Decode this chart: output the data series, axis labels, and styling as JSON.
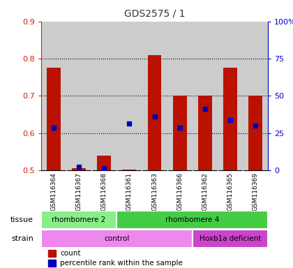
{
  "title": "GDS2575 / 1",
  "samples": [
    "GSM116364",
    "GSM116367",
    "GSM116368",
    "GSM116361",
    "GSM116363",
    "GSM116366",
    "GSM116362",
    "GSM116365",
    "GSM116369"
  ],
  "counts": [
    0.775,
    0.505,
    0.54,
    0.501,
    0.81,
    0.7,
    0.7,
    0.775,
    0.7
  ],
  "percentiles": [
    0.615,
    0.51,
    0.505,
    0.625,
    0.645,
    0.615,
    0.665,
    0.635,
    0.62
  ],
  "ylim_left": [
    0.5,
    0.9
  ],
  "ylim_right": [
    0,
    100
  ],
  "yticks_left": [
    0.5,
    0.6,
    0.7,
    0.8,
    0.9
  ],
  "yticks_right": [
    0,
    25,
    50,
    75,
    100
  ],
  "bar_color": "#bb1100",
  "dot_color": "#0000bb",
  "bar_bottom": 0.5,
  "tissue_groups": [
    {
      "label": "rhombomere 2",
      "start": 0,
      "end": 3,
      "color": "#88ee88"
    },
    {
      "label": "rhombomere 4",
      "start": 3,
      "end": 9,
      "color": "#44cc44"
    }
  ],
  "strain_groups": [
    {
      "label": "control",
      "start": 0,
      "end": 6,
      "color": "#ee88ee"
    },
    {
      "label": "Hoxb1a deficient",
      "start": 6,
      "end": 9,
      "color": "#cc44cc"
    }
  ],
  "legend_items": [
    {
      "color": "#bb1100",
      "label": "count"
    },
    {
      "color": "#0000bb",
      "label": "percentile rank within the sample"
    }
  ],
  "col_bg_color": "#cccccc",
  "plot_bg_color": "#ffffff",
  "title_color": "#333333",
  "left_axis_color": "#cc2200",
  "right_axis_color": "#0000cc",
  "grid_yticks": [
    0.6,
    0.7,
    0.8
  ]
}
